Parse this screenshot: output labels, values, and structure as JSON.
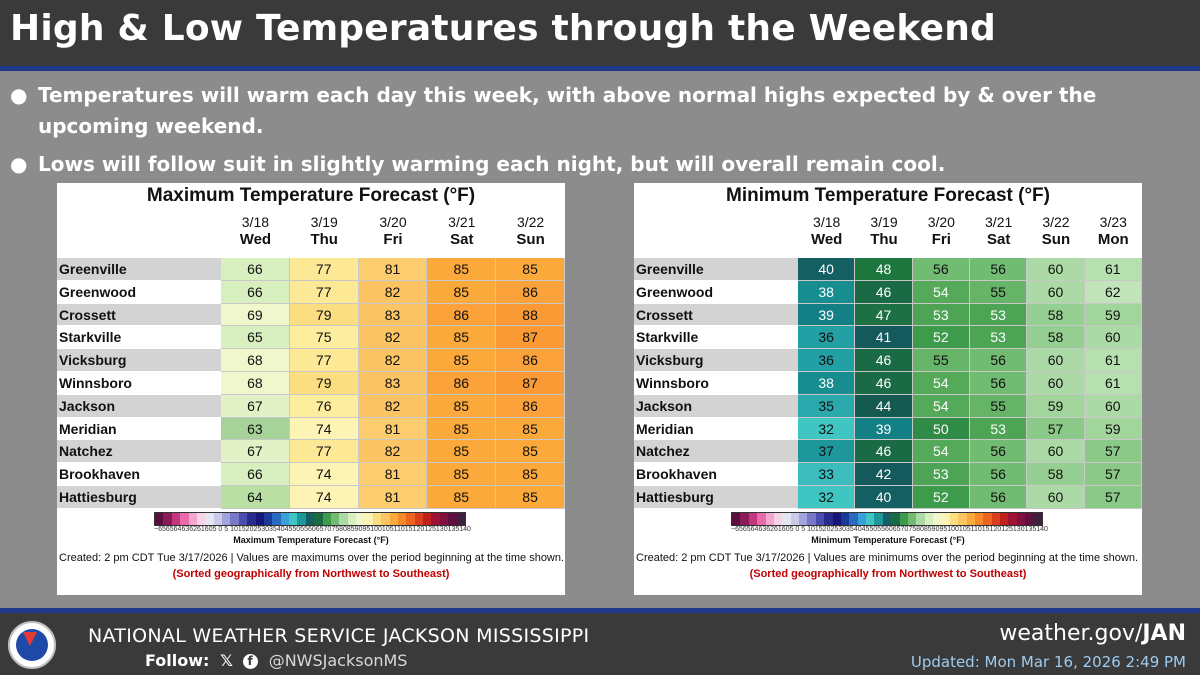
{
  "title": "High & Low Temperatures through the Weekend",
  "bullets": [
    "Temperatures will warm each day this week, with above normal highs expected by & over the upcoming weekend.",
    "Lows will follow suit in slightly warming each night, but will overall remain cool."
  ],
  "bullet_glyph": "●",
  "cities": [
    "Greenville",
    "Greenwood",
    "Crossett",
    "Starkville",
    "Vicksburg",
    "Winnsboro",
    "Jackson",
    "Meridian",
    "Natchez",
    "Brookhaven",
    "Hattiesburg"
  ],
  "max_panel": {
    "title": "Maximum Temperature Forecast (°F)",
    "dates": [
      "3/18",
      "3/19",
      "3/20",
      "3/21",
      "3/22"
    ],
    "days": [
      "Wed",
      "Thu",
      "Fri",
      "Sat",
      "Sun"
    ],
    "values": [
      [
        66,
        77,
        81,
        85,
        85
      ],
      [
        66,
        77,
        82,
        85,
        86
      ],
      [
        69,
        79,
        83,
        86,
        88
      ],
      [
        65,
        75,
        82,
        85,
        87
      ],
      [
        68,
        77,
        82,
        85,
        86
      ],
      [
        68,
        79,
        83,
        86,
        87
      ],
      [
        67,
        76,
        82,
        85,
        86
      ],
      [
        63,
        74,
        81,
        85,
        85
      ],
      [
        67,
        77,
        82,
        85,
        85
      ],
      [
        66,
        74,
        81,
        85,
        85
      ],
      [
        64,
        74,
        81,
        85,
        85
      ]
    ],
    "scale_ticks": "−65656463626160‪5 0 5 10152025303540455055606570758085909510010511015120125130135140",
    "scale_label": "Maximum Temperature Forecast (°F)",
    "created": "Created: 2 pm CDT Tue 3/17/2026  |  Values are maximums over the period beginning at the time shown.",
    "sorted": "(Sorted geographically from Northwest to Southeast)"
  },
  "min_panel": {
    "title": "Minimum Temperature Forecast (°F)",
    "dates": [
      "3/18",
      "3/19",
      "3/20",
      "3/21",
      "3/22",
      "3/23"
    ],
    "days": [
      "Wed",
      "Thu",
      "Fri",
      "Sat",
      "Sun",
      "Mon"
    ],
    "values": [
      [
        40,
        48,
        56,
        56,
        60,
        61
      ],
      [
        38,
        46,
        54,
        55,
        60,
        62
      ],
      [
        39,
        47,
        53,
        53,
        58,
        59
      ],
      [
        36,
        41,
        52,
        53,
        58,
        60
      ],
      [
        36,
        46,
        55,
        56,
        60,
        61
      ],
      [
        38,
        46,
        54,
        56,
        60,
        61
      ],
      [
        35,
        44,
        54,
        55,
        59,
        60
      ],
      [
        32,
        39,
        50,
        53,
        57,
        59
      ],
      [
        37,
        46,
        54,
        56,
        60,
        57
      ],
      [
        33,
        42,
        53,
        56,
        58,
        57
      ],
      [
        32,
        40,
        52,
        56,
        60,
        57
      ]
    ],
    "scale_ticks": "−65656463626160‪5 0 5 10152025303540455055606570758085909510010511015120125130135140",
    "scale_label": "Minimum Temperature Forecast (°F)",
    "created": "Created: 2 pm CDT Tue 3/17/2026  |  Values are minimums over the period beginning at the time shown.",
    "sorted": "(Sorted geographically from Northwest to Southeast)"
  },
  "footer": {
    "office": "NATIONAL WEATHER SERVICE JACKSON MISSISSIPPI",
    "follow_label": "Follow:",
    "x_icon": "𝕏",
    "fb_icon": "f",
    "handle": "@NWSJacksonMS",
    "url_prefix": "weather.gov/",
    "url_bold": "JAN",
    "updated": "Updated: Mon Mar 16, 2026 2:49 PM"
  },
  "colors": {
    "title_bar": "#3a3a3a",
    "accent_rule": "#1f3a8a",
    "background": "#8c8c8c"
  }
}
